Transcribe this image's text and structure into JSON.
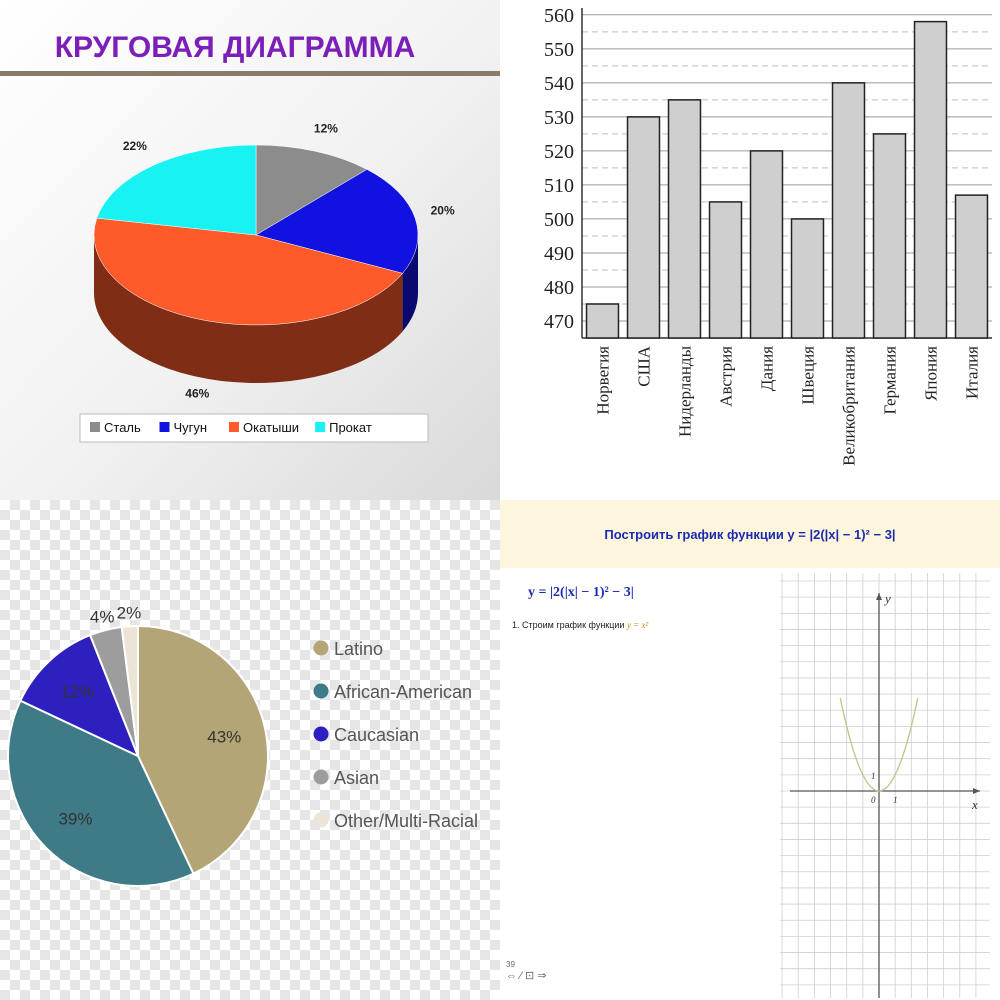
{
  "chart_data": [
    {
      "type": "pie",
      "title": "КРУГОВАЯ ДИАГРАММА",
      "categories": [
        "Сталь",
        "Чугун",
        "Окатыши",
        "Прокат"
      ],
      "values": [
        12,
        20,
        46,
        22
      ],
      "labels": [
        "12%",
        "20%",
        "46%",
        "22%"
      ],
      "colors": [
        "#8c8c8c",
        "#1212e0",
        "#ff5a2a",
        "#19f2f2"
      ],
      "legend": "bottom",
      "three_d": true
    },
    {
      "type": "bar",
      "categories": [
        "Норвегия",
        "США",
        "Нидерланды",
        "Австрия",
        "Дания",
        "Швеция",
        "Великобритания",
        "Германия",
        "Япония",
        "Италия"
      ],
      "values": [
        475,
        530,
        535,
        505,
        520,
        500,
        540,
        525,
        558,
        507
      ],
      "ylim": [
        465,
        562
      ],
      "yticks": [
        "470",
        "480",
        "490",
        "500",
        "510",
        "520",
        "530",
        "540",
        "550",
        "560"
      ],
      "grid": true,
      "bar_color": "#cfcfcf"
    },
    {
      "type": "pie",
      "categories": [
        "Latino",
        "African-American",
        "Caucasian",
        "Asian",
        "Other/Multi-Racial"
      ],
      "values": [
        43,
        39,
        12,
        4,
        2
      ],
      "labels": [
        "43%",
        "39%",
        "12%",
        "4%",
        "2%"
      ],
      "colors": [
        "#b3a575",
        "#3e7b86",
        "#2e1fbf",
        "#9d9d9d",
        "#ece5d6"
      ],
      "legend": "right"
    },
    {
      "type": "line",
      "title": "Построить график функции y = |2(|x| − 1)² − 3|",
      "formula": "y = |2(|x| − 1)² − 3|",
      "step": "1. Строим график функции",
      "step_function": "y = x²",
      "xlabel": "x",
      "ylabel": "y",
      "origin_label": "0",
      "unit_x_label": "1",
      "unit_y_label": "1",
      "series": [
        {
          "x": [
            -2.4,
            -2,
            -1.5,
            -1,
            -0.5,
            0,
            0.5,
            1,
            1.5,
            2,
            2.4
          ],
          "y": [
            5.76,
            4,
            2.25,
            1,
            0.25,
            0,
            0.25,
            1,
            2.25,
            4,
            5.76
          ]
        }
      ],
      "xlim": [
        -6,
        6
      ],
      "ylim": [
        -13,
        14
      ],
      "curve_color": "#c8c08a",
      "page_number": "39",
      "nav_symbols": "⇔ ⁄ ⊡ ⇒"
    }
  ]
}
